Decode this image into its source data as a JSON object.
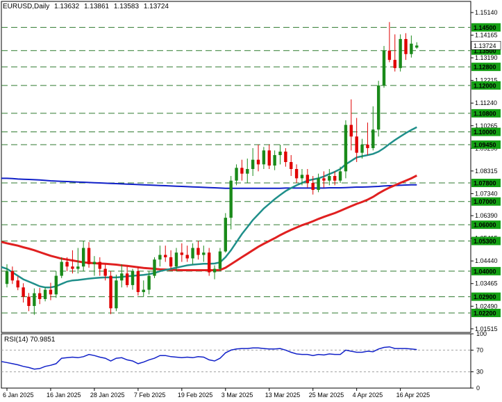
{
  "header": {
    "symbol": "EURUSD,Daily",
    "open": "1.13632",
    "high": "1.13861",
    "low": "1.13583",
    "close": "1.13724"
  },
  "colors": {
    "bull": "#1a8a1a",
    "bear": "#e00000",
    "sma_fast": "#1f8f8a",
    "sma_mid": "#e02020",
    "sma_slow": "#1020c8",
    "level_line": "#2f7a2f",
    "label_bg": "#14a014",
    "rsi_line": "#1020c8"
  },
  "chart_data": {
    "type": "candlestick",
    "ylim": [
      1.0136,
      1.1562
    ],
    "y_ticks": [
      "1.15140",
      "1.14165",
      "1.13190",
      "1.12215",
      "1.11240",
      "1.10265",
      "1.09290",
      "1.08315",
      "1.07340",
      "1.06390",
      "1.05415",
      "1.04440",
      "1.03465",
      "1.02490",
      "1.01515"
    ],
    "levels": [
      "1.14500",
      "1.13500",
      "1.12800",
      "1.12000",
      "1.10800",
      "1.10000",
      "1.09450",
      "1.07800",
      "1.07000",
      "1.06000",
      "1.05300",
      "1.04000",
      "1.02900",
      "1.02200"
    ],
    "current_price": "1.13724",
    "x_labels": [
      "6 Jan 2025",
      "16 Jan 2025",
      "28 Jan 2025",
      "7 Feb 2025",
      "19 Feb 2025",
      "3 Mar 2025",
      "13 Mar 2025",
      "25 Mar 2025",
      "4 Apr 2025",
      "16 Apr 2025"
    ],
    "x_label_bar_index": [
      0,
      8,
      16,
      24,
      32,
      40,
      48,
      56,
      64,
      72
    ],
    "candles": [
      [
        1.0345,
        1.043,
        1.033,
        1.04
      ],
      [
        1.04,
        1.042,
        1.0345,
        1.036
      ],
      [
        1.036,
        1.0378,
        1.0318,
        1.033
      ],
      [
        1.033,
        1.0348,
        1.0265,
        1.029
      ],
      [
        1.029,
        1.0306,
        1.0228,
        1.025
      ],
      [
        1.025,
        1.0326,
        1.0212,
        1.0305
      ],
      [
        1.0305,
        1.0328,
        1.0258,
        1.028
      ],
      [
        1.028,
        1.033,
        1.027,
        1.032
      ],
      [
        1.032,
        1.035,
        1.0275,
        1.03
      ],
      [
        1.03,
        1.04,
        1.0285,
        1.038
      ],
      [
        1.038,
        1.046,
        1.037,
        1.044
      ],
      [
        1.044,
        1.046,
        1.04,
        1.042
      ],
      [
        1.042,
        1.049,
        1.039,
        1.041
      ],
      [
        1.041,
        1.05,
        1.039,
        1.042
      ],
      [
        1.042,
        1.053,
        1.04,
        1.05
      ],
      [
        1.05,
        1.0525,
        1.0415,
        1.043
      ],
      [
        1.043,
        1.0465,
        1.038,
        1.044
      ],
      [
        1.044,
        1.046,
        1.038,
        1.041
      ],
      [
        1.041,
        1.043,
        1.036,
        1.038
      ],
      [
        1.038,
        1.04,
        1.0215,
        1.024
      ],
      [
        1.024,
        1.0385,
        1.0228,
        1.036
      ],
      [
        1.036,
        1.043,
        1.033,
        1.039
      ],
      [
        1.039,
        1.042,
        1.033,
        1.034
      ],
      [
        1.034,
        1.041,
        1.032,
        1.04
      ],
      [
        1.04,
        1.042,
        1.0295,
        1.031
      ],
      [
        1.031,
        1.036,
        1.029,
        1.032
      ],
      [
        1.032,
        1.04,
        1.03,
        1.038
      ],
      [
        1.038,
        1.046,
        1.037,
        1.045
      ],
      [
        1.045,
        1.051,
        1.042,
        1.047
      ],
      [
        1.047,
        1.051,
        1.044,
        1.046
      ],
      [
        1.046,
        1.049,
        1.041,
        1.042
      ],
      [
        1.042,
        1.05,
        1.04,
        1.048
      ],
      [
        1.048,
        1.052,
        1.044,
        1.047
      ],
      [
        1.047,
        1.051,
        1.044,
        1.0455
      ],
      [
        1.0455,
        1.052,
        1.043,
        1.05
      ],
      [
        1.05,
        1.053,
        1.045,
        1.047
      ],
      [
        1.047,
        1.051,
        1.044,
        1.048
      ],
      [
        1.048,
        1.05,
        1.038,
        1.0395
      ],
      [
        1.0395,
        1.0425,
        1.0365,
        1.041
      ],
      [
        1.041,
        1.05,
        1.04,
        1.0485
      ],
      [
        1.0485,
        1.065,
        1.048,
        1.063
      ],
      [
        1.063,
        1.081,
        1.058,
        1.079
      ],
      [
        1.079,
        1.086,
        1.077,
        1.0845
      ],
      [
        1.0845,
        1.088,
        1.079,
        1.082
      ],
      [
        1.082,
        1.0885,
        1.078,
        1.084
      ],
      [
        1.084,
        1.093,
        1.081,
        1.088
      ],
      [
        1.088,
        1.0945,
        1.083,
        1.086
      ],
      [
        1.086,
        1.0935,
        1.084,
        1.092
      ],
      [
        1.092,
        1.0945,
        1.084,
        1.0855
      ],
      [
        1.0855,
        1.092,
        1.0835,
        1.09
      ],
      [
        1.09,
        1.0945,
        1.086,
        1.0915
      ],
      [
        1.0915,
        1.093,
        1.085,
        1.087
      ],
      [
        1.087,
        1.09,
        1.081,
        1.084
      ],
      [
        1.084,
        1.086,
        1.078,
        1.08
      ],
      [
        1.08,
        1.084,
        1.077,
        1.0815
      ],
      [
        1.0815,
        1.084,
        1.076,
        1.078
      ],
      [
        1.078,
        1.081,
        1.073,
        1.075
      ],
      [
        1.075,
        1.082,
        1.074,
        1.08
      ],
      [
        1.08,
        1.083,
        1.076,
        1.079
      ],
      [
        1.079,
        1.084,
        1.077,
        1.081
      ],
      [
        1.081,
        1.083,
        1.077,
        1.079
      ],
      [
        1.079,
        1.085,
        1.078,
        1.083
      ],
      [
        1.083,
        1.105,
        1.08,
        1.103
      ],
      [
        1.103,
        1.114,
        1.092,
        1.098
      ],
      [
        1.098,
        1.106,
        1.087,
        1.091
      ],
      [
        1.091,
        1.097,
        1.0885,
        1.0945
      ],
      [
        1.0945,
        1.104,
        1.09,
        1.093
      ],
      [
        1.093,
        1.111,
        1.092,
        1.101
      ],
      [
        1.101,
        1.122,
        1.098,
        1.12
      ],
      [
        1.12,
        1.137,
        1.119,
        1.135
      ],
      [
        1.135,
        1.1473,
        1.13,
        1.131
      ],
      [
        1.131,
        1.142,
        1.126,
        1.1275
      ],
      [
        1.1275,
        1.142,
        1.126,
        1.14
      ],
      [
        1.14,
        1.1425,
        1.131,
        1.1335
      ],
      [
        1.1335,
        1.1415,
        1.132,
        1.138
      ],
      [
        1.1363,
        1.1386,
        1.1358,
        1.1372
      ]
    ],
    "sma_fast": [
      1.041,
      1.0395,
      1.038,
      1.0365,
      1.0355,
      1.0345,
      1.0335,
      1.033,
      1.033,
      1.0335,
      1.0345,
      1.0355,
      1.036,
      1.0362,
      1.0365,
      1.0368,
      1.037,
      1.0372,
      1.0373,
      1.0373,
      1.0373,
      1.0375,
      1.0378,
      1.038,
      1.0382,
      1.0384,
      1.0387,
      1.0392,
      1.04,
      1.0405,
      1.041,
      1.0415,
      1.042,
      1.0425,
      1.0428,
      1.043,
      1.0432,
      1.0432,
      1.0433,
      1.0438,
      1.046,
      1.049,
      1.0525,
      1.056,
      1.059,
      1.062,
      1.0645,
      1.067,
      1.069,
      1.071,
      1.0728,
      1.0745,
      1.0758,
      1.077,
      1.078,
      1.079,
      1.0795,
      1.08,
      1.0808,
      1.0818,
      1.0828,
      1.084,
      1.086,
      1.0875,
      1.089,
      1.0895,
      1.09,
      1.0905,
      1.0915,
      1.093,
      1.0948,
      1.0965,
      1.098,
      1.0995,
      1.1008,
      1.102
    ],
    "sma_mid": [
      1.052,
      1.0515,
      1.051,
      1.0503,
      1.0497,
      1.049,
      1.0482,
      1.0474,
      1.0466,
      1.046,
      1.0454,
      1.045,
      1.0446,
      1.0442,
      1.0438,
      1.0436,
      1.0434,
      1.0433,
      1.0432,
      1.043,
      1.0428,
      1.0425,
      1.0423,
      1.042,
      1.0417,
      1.0414,
      1.0412,
      1.041,
      1.0408,
      1.0407,
      1.0406,
      1.0405,
      1.0404,
      1.0404,
      1.0404,
      1.0404,
      1.0404,
      1.0404,
      1.0404,
      1.0405,
      1.0415,
      1.043,
      1.0445,
      1.046,
      1.0475,
      1.049,
      1.0505,
      1.0518,
      1.053,
      1.0542,
      1.0555,
      1.0567,
      1.0578,
      1.0588,
      1.0598,
      1.0606,
      1.0615,
      1.0625,
      1.0634,
      1.0642,
      1.065,
      1.066,
      1.067,
      1.068,
      1.069,
      1.0698,
      1.0708,
      1.072,
      1.0735,
      1.0748,
      1.076,
      1.077,
      1.078,
      1.079,
      1.08,
      1.0812
    ],
    "sma_slow": [
      1.08,
      1.0799,
      1.0797,
      1.0796,
      1.0795,
      1.0794,
      1.0793,
      1.0791,
      1.0789,
      1.0788,
      1.0787,
      1.0786,
      1.0785,
      1.0784,
      1.0783,
      1.0782,
      1.0781,
      1.078,
      1.0779,
      1.0778,
      1.0777,
      1.0776,
      1.0775,
      1.0774,
      1.0773,
      1.0772,
      1.0771,
      1.077,
      1.0769,
      1.0768,
      1.0767,
      1.0766,
      1.0765,
      1.0764,
      1.0763,
      1.0762,
      1.0761,
      1.076,
      1.0759,
      1.0758,
      1.0757,
      1.0757,
      1.0757,
      1.0757,
      1.0757,
      1.0757,
      1.0757,
      1.0757,
      1.0757,
      1.0757,
      1.0757,
      1.0758,
      1.0758,
      1.0758,
      1.0758,
      1.0758,
      1.0758,
      1.0758,
      1.0758,
      1.0759,
      1.0759,
      1.0759,
      1.076,
      1.0761,
      1.0762,
      1.0762,
      1.0763,
      1.0764,
      1.0765,
      1.0767,
      1.0768,
      1.0769,
      1.077,
      1.0771,
      1.0772,
      1.0772
    ],
    "rsi": {
      "label": "RSI(14) 70.9851",
      "ylim": [
        0,
        100
      ],
      "ticks": [
        "100",
        "70",
        "30",
        "0"
      ],
      "tick_values": [
        100,
        70,
        30,
        0
      ],
      "values": [
        47,
        45,
        43,
        40,
        38,
        35,
        36,
        40,
        42,
        45,
        55,
        56,
        57,
        56,
        58,
        62,
        60,
        57,
        55,
        50,
        55,
        56,
        52,
        50,
        45,
        48,
        52,
        55,
        60,
        60,
        58,
        57,
        56,
        57,
        56,
        58,
        57,
        52,
        50,
        55,
        65,
        70,
        72,
        73,
        73,
        74,
        74,
        73,
        72,
        72,
        73,
        70,
        66,
        63,
        62,
        62,
        60,
        62,
        61,
        63,
        62,
        62,
        70,
        68,
        66,
        66,
        68,
        67,
        72,
        75,
        76,
        73,
        73,
        73,
        72,
        71
      ]
    }
  }
}
